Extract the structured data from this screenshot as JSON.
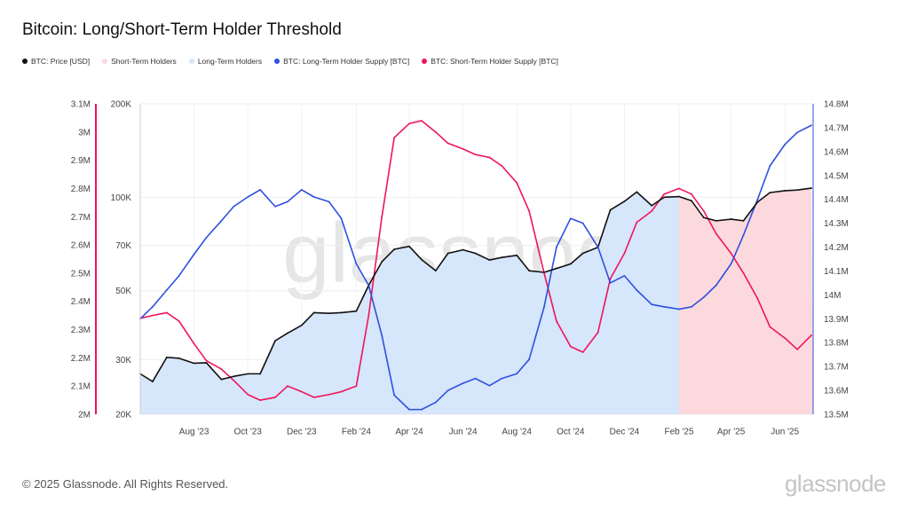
{
  "title": "Bitcoin: Long/Short-Term Holder Threshold",
  "footer": "© 2025 Glassnode. All Rights Reserved.",
  "brand": "glassnode",
  "watermark": "glassnode",
  "colors": {
    "price": "#111111",
    "sth_fill": "#fcd9dc",
    "lth_fill": "#d6e6fb",
    "lth_supply": "#2f4fe0",
    "sth_supply": "#f0145a"
  },
  "chart_data": {
    "type": "line",
    "title": "Bitcoin: Long/Short-Term Holder Threshold",
    "legend": [
      {
        "name": "BTC: Price [USD]",
        "color": "#111111"
      },
      {
        "name": "Short-Term Holders",
        "color": "#fcd9dc"
      },
      {
        "name": "Long-Term Holders",
        "color": "#d6e6fb"
      },
      {
        "name": "BTC: Long-Term Holder Supply [BTC]",
        "color": "#2f4fe0"
      },
      {
        "name": "BTC: Short-Term Holder Supply [BTC]",
        "color": "#f0145a"
      }
    ],
    "legend_position": "top-left",
    "x_range": [
      "2023-06-01",
      "2025-07-03"
    ],
    "x_ticks": [
      "Aug '23",
      "Oct '23",
      "Dec '23",
      "Feb '24",
      "Apr '24",
      "Jun '24",
      "Aug '24",
      "Oct '24",
      "Dec '24",
      "Feb '25",
      "Apr '25",
      "Jun '25"
    ],
    "x_tick_dates": [
      "2023-08-01",
      "2023-10-01",
      "2023-12-01",
      "2024-02-01",
      "2024-04-01",
      "2024-06-01",
      "2024-08-01",
      "2024-10-01",
      "2024-12-01",
      "2025-02-01",
      "2025-04-01",
      "2025-06-01"
    ],
    "regime_change_date": "2025-02-01",
    "regimes": [
      {
        "name": "Long-Term Holders",
        "from": "2023-06-01",
        "to": "2025-02-01"
      },
      {
        "name": "Short-Term Holders",
        "from": "2025-02-01",
        "to": "2025-07-03"
      }
    ],
    "y_axes": {
      "sth": {
        "side": "left-outer",
        "ylim": [
          2000000,
          3100000
        ],
        "ticks": [
          "2M",
          "2.1M",
          "2.2M",
          "2.3M",
          "2.4M",
          "2.5M",
          "2.6M",
          "2.7M",
          "2.8M",
          "2.9M",
          "3M",
          "3.1M"
        ]
      },
      "price": {
        "side": "left-inner",
        "scale": "log",
        "ylim": [
          20000,
          200000
        ],
        "ticks": [
          "20K",
          "30K",
          "50K",
          "70K",
          "100K",
          "200K"
        ],
        "tick_values": [
          20000,
          30000,
          50000,
          70000,
          100000,
          200000
        ]
      },
      "lth": {
        "side": "right",
        "ylim": [
          13500000,
          14800000
        ],
        "ticks": [
          "13.5M",
          "13.6M",
          "13.7M",
          "13.8M",
          "13.9M",
          "14M",
          "14.1M",
          "14.2M",
          "14.3M",
          "14.4M",
          "14.5M",
          "14.6M",
          "14.7M",
          "14.8M"
        ]
      }
    },
    "dates": [
      "2023-06-01",
      "2023-06-15",
      "2023-07-01",
      "2023-07-15",
      "2023-08-01",
      "2023-08-15",
      "2023-09-01",
      "2023-09-15",
      "2023-10-01",
      "2023-10-15",
      "2023-11-01",
      "2023-11-15",
      "2023-12-01",
      "2023-12-15",
      "2024-01-01",
      "2024-01-15",
      "2024-02-01",
      "2024-02-15",
      "2024-03-01",
      "2024-03-15",
      "2024-04-01",
      "2024-04-15",
      "2024-05-01",
      "2024-05-15",
      "2024-06-01",
      "2024-06-15",
      "2024-07-01",
      "2024-07-15",
      "2024-08-01",
      "2024-08-15",
      "2024-09-01",
      "2024-09-15",
      "2024-10-01",
      "2024-10-15",
      "2024-11-01",
      "2024-11-15",
      "2024-12-01",
      "2024-12-15",
      "2025-01-01",
      "2025-01-15",
      "2025-02-01",
      "2025-02-15",
      "2025-03-01",
      "2025-03-15",
      "2025-04-01",
      "2025-04-15",
      "2025-05-01",
      "2025-05-15",
      "2025-06-01",
      "2025-06-15",
      "2025-07-01"
    ],
    "series": [
      {
        "name": "BTC: Price [USD]",
        "axis": "price",
        "values": [
          27000,
          25500,
          30500,
          30300,
          29200,
          29300,
          25900,
          26500,
          27000,
          27000,
          34500,
          36500,
          38700,
          42500,
          42300,
          42500,
          43000,
          52000,
          62000,
          68000,
          69500,
          63000,
          58000,
          66000,
          67700,
          66000,
          62800,
          64000,
          65000,
          58000,
          57300,
          59000,
          61000,
          66000,
          69000,
          91000,
          97000,
          104000,
          94000,
          100000,
          100500,
          97500,
          86000,
          84000,
          85000,
          84000,
          96500,
          103500,
          105000,
          105500,
          107000
        ]
      },
      {
        "name": "BTC: Long-Term Holder Supply [BTC]",
        "axis": "lth",
        "values": [
          13900000,
          13950000,
          14020000,
          14080000,
          14170000,
          14240000,
          14310000,
          14370000,
          14410000,
          14440000,
          14370000,
          14390000,
          14440000,
          14410000,
          14390000,
          14320000,
          14130000,
          14040000,
          13830000,
          13580000,
          13520000,
          13520000,
          13550000,
          13600000,
          13630000,
          13650000,
          13620000,
          13650000,
          13670000,
          13730000,
          13950000,
          14200000,
          14320000,
          14300000,
          14200000,
          14050000,
          14080000,
          14020000,
          13960000,
          13950000,
          13940000,
          13950000,
          13990000,
          14040000,
          14130000,
          14250000,
          14400000,
          14540000,
          14630000,
          14680000,
          14710000
        ]
      },
      {
        "name": "BTC: Short-Term Holder Supply [BTC]",
        "axis": "sth",
        "values": [
          2340000,
          2350000,
          2360000,
          2330000,
          2250000,
          2190000,
          2160000,
          2120000,
          2070000,
          2050000,
          2060000,
          2100000,
          2080000,
          2060000,
          2070000,
          2080000,
          2100000,
          2350000,
          2700000,
          2980000,
          3030000,
          3040000,
          3000000,
          2960000,
          2940000,
          2920000,
          2910000,
          2880000,
          2820000,
          2720000,
          2500000,
          2330000,
          2240000,
          2220000,
          2290000,
          2480000,
          2570000,
          2680000,
          2720000,
          2780000,
          2800000,
          2780000,
          2720000,
          2640000,
          2570000,
          2500000,
          2410000,
          2310000,
          2270000,
          2230000,
          2280000
        ]
      }
    ],
    "grid": true
  }
}
